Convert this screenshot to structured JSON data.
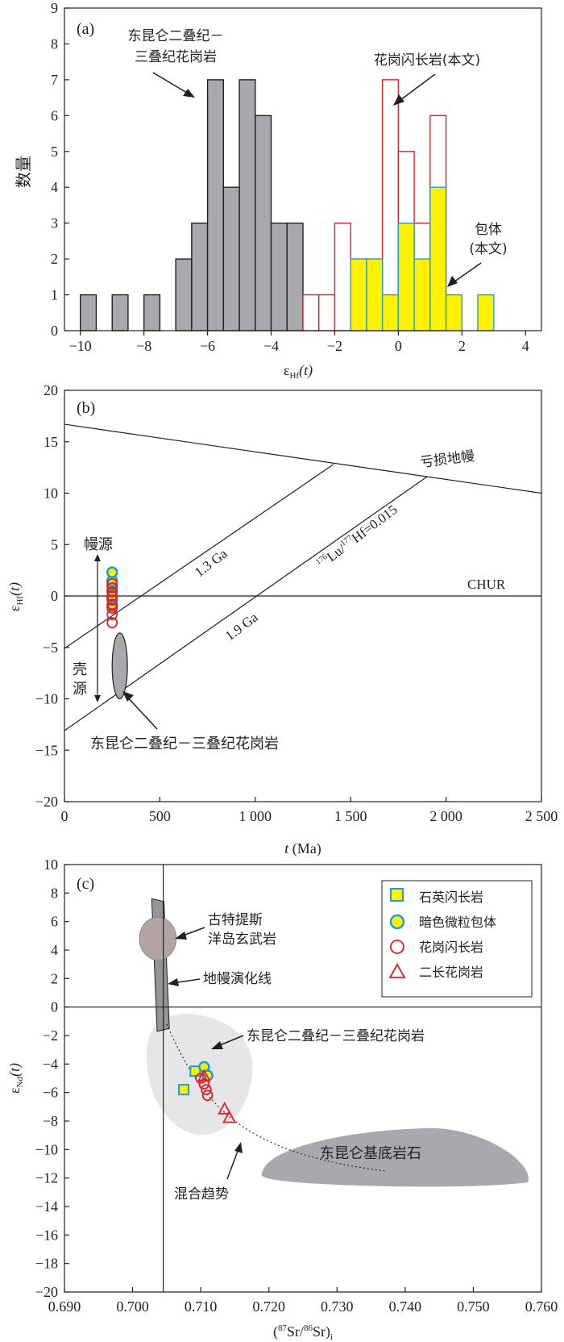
{
  "chart_data": [
    {
      "type": "bar",
      "panel_label": "(a)",
      "xlabel_main": "ε",
      "xlabel_sub": "Hf",
      "xlabel_tail": "(t)",
      "ylabel": "数量",
      "xlim": [
        -10.5,
        4.5
      ],
      "ylim": [
        0,
        9
      ],
      "xticks": [
        -10,
        -8,
        -6,
        -4,
        -2,
        0,
        2,
        4
      ],
      "yticks": [
        0,
        1,
        2,
        3,
        4,
        5,
        6,
        7,
        8,
        9
      ],
      "bin_width": 0.5,
      "series": [
        {
          "key": "dongkunlun",
          "color": "#a7a9ac",
          "edge": "#231f20",
          "bins": [
            [
              -10,
              1
            ],
            [
              -9,
              1
            ],
            [
              -8,
              1
            ],
            [
              -7,
              2
            ],
            [
              -6.5,
              3
            ],
            [
              -6,
              7
            ],
            [
              -5.5,
              4
            ],
            [
              -5,
              7
            ],
            [
              -4.5,
              6
            ],
            [
              -4,
              3
            ],
            [
              -3.5,
              3
            ]
          ]
        },
        {
          "key": "granodiorite",
          "color": "#ffffff",
          "edge": "#e31e24",
          "bins": [
            [
              -3,
              1
            ],
            [
              -2.5,
              1
            ],
            [
              -2,
              3
            ],
            [
              -1.5,
              2
            ],
            [
              -1,
              2
            ],
            [
              -0.5,
              7
            ],
            [
              0,
              5
            ],
            [
              0.5,
              3
            ],
            [
              1,
              6
            ]
          ]
        },
        {
          "key": "enclave",
          "color": "#fff200",
          "edge": "#1c9dd9",
          "bins": [
            [
              -1.5,
              2
            ],
            [
              -1,
              2
            ],
            [
              -0.5,
              1
            ],
            [
              0,
              3
            ],
            [
              0.5,
              2
            ],
            [
              1,
              4
            ],
            [
              1.5,
              1
            ],
            [
              2.5,
              1
            ]
          ]
        }
      ],
      "annotations": {
        "dongkunlun_line1": "东昆仑二叠纪－",
        "dongkunlun_line2": "三叠纪花岗岩",
        "granodiorite": "花岗闪长岩(本文)",
        "enclave_line1": "包体",
        "enclave_line2": "(本文)"
      }
    },
    {
      "type": "line",
      "panel_label": "(b)",
      "xlabel_italic": "t",
      "xlabel_unit": " (Ma)",
      "ylabel_main": "ε",
      "ylabel_sub": "Hf",
      "ylabel_tail": "(t)",
      "xlim": [
        0,
        2500
      ],
      "ylim": [
        -20,
        20
      ],
      "xticks": [
        0,
        500,
        1000,
        1500,
        2000,
        2500
      ],
      "xtick_labels": [
        "0",
        "500",
        "1 000",
        "1 500",
        "2 000",
        "2 500"
      ],
      "yticks": [
        -20,
        -15,
        -10,
        -5,
        0,
        5,
        10,
        15,
        20
      ],
      "depleted_mantle": [
        [
          0,
          16.7
        ],
        [
          2500,
          10.0
        ]
      ],
      "chur": [
        [
          0,
          0
        ],
        [
          2500,
          0
        ]
      ],
      "line_1_3Ga": [
        [
          0,
          -5.1
        ],
        [
          1410,
          12.8
        ]
      ],
      "line_1_9Ga": [
        [
          0,
          -13.1
        ],
        [
          1900,
          11.6
        ]
      ],
      "granodiorite_points": [
        [
          250,
          -2.6
        ],
        [
          250,
          -1.8
        ],
        [
          250,
          -1.2
        ],
        [
          250,
          -0.8
        ],
        [
          250,
          -0.4
        ],
        [
          250,
          0.0
        ],
        [
          250,
          0.4
        ],
        [
          250,
          0.8
        ],
        [
          250,
          1.2
        ]
      ],
      "enclave_points": [
        [
          250,
          -1.0
        ],
        [
          250,
          -0.2
        ],
        [
          250,
          0.5
        ],
        [
          250,
          1.0
        ],
        [
          250,
          1.5
        ],
        [
          250,
          2.3
        ]
      ],
      "ellipse": {
        "cx": 290,
        "cy": -6.8,
        "rx": 40,
        "ry": 3.2,
        "fill": "#a7a9ac"
      },
      "labels": {
        "depleted_mantle": "亏损地幔",
        "chur": "CHUR",
        "line13": "1.3 Ga",
        "line19": "1.9 Ga",
        "lu_pre": "176",
        "lu_text": "Lu/",
        "lu_mid": "177",
        "lu_tail": "Hf=0.015",
        "mantle_source": "幔源",
        "crust_source_1": "壳",
        "crust_source_2": "源",
        "dongkunlun": "东昆仑二叠纪－三叠纪花岗岩"
      }
    },
    {
      "type": "scatter",
      "panel_label": "(c)",
      "xlabel_pre": "(",
      "xlabel_sup1": "87",
      "xlabel_mid": "Sr/",
      "xlabel_sup2": "86",
      "xlabel_tail": "Sr)",
      "xlabel_sub": "i",
      "ylabel_main": "ε",
      "ylabel_sub": "Nd",
      "ylabel_tail": "(t)",
      "xlim": [
        0.69,
        0.76
      ],
      "ylim": [
        -20,
        10
      ],
      "xticks": [
        0.69,
        0.7,
        0.71,
        0.72,
        0.73,
        0.74,
        0.75,
        0.76
      ],
      "xtick_labels": [
        "0.690",
        "0.700",
        "0.710",
        "0.720",
        "0.730",
        "0.740",
        "0.750",
        "0.760"
      ],
      "yticks": [
        -20,
        -18,
        -16,
        -14,
        -12,
        -10,
        -8,
        -6,
        -4,
        -2,
        0,
        2,
        4,
        6,
        8,
        10
      ],
      "vertical_ref_x": 0.7045,
      "series": [
        {
          "key": "quartz_diorite",
          "name": "石英闪长岩",
          "marker": "square",
          "fill": "#fff200",
          "edge": "#1c9dd9",
          "points": [
            [
              0.7075,
              -5.8
            ],
            [
              0.7092,
              -4.5
            ]
          ]
        },
        {
          "key": "enclave",
          "name": "暗色微粒包体",
          "marker": "circle",
          "fill": "#fff200",
          "edge": "#1c9dd9",
          "points": [
            [
              0.7105,
              -4.2
            ],
            [
              0.711,
              -4.8
            ]
          ]
        },
        {
          "key": "granodiorite",
          "name": "花岗闪长岩",
          "marker": "circle_open",
          "fill": "none",
          "edge": "#e31e24",
          "points": [
            [
              0.71,
              -5.0
            ],
            [
              0.7105,
              -5.4
            ],
            [
              0.7108,
              -5.8
            ],
            [
              0.711,
              -6.2
            ]
          ]
        },
        {
          "key": "monzogranite",
          "name": "二长花岗岩",
          "marker": "triangle_open",
          "fill": "none",
          "edge": "#e31e24",
          "points": [
            [
              0.7105,
              -4.9
            ],
            [
              0.7135,
              -7.2
            ],
            [
              0.7142,
              -7.8
            ]
          ]
        }
      ],
      "labels": {
        "tethys_line1": "古特提斯",
        "tethys_line2": "洋岛玄武岩",
        "mantle_evolution": "地幔演化线",
        "dongkunlun": "东昆仑二叠纪－三叠纪花岗岩",
        "basement": "东昆仑基底岩石",
        "mixing": "混合趋势"
      }
    }
  ]
}
